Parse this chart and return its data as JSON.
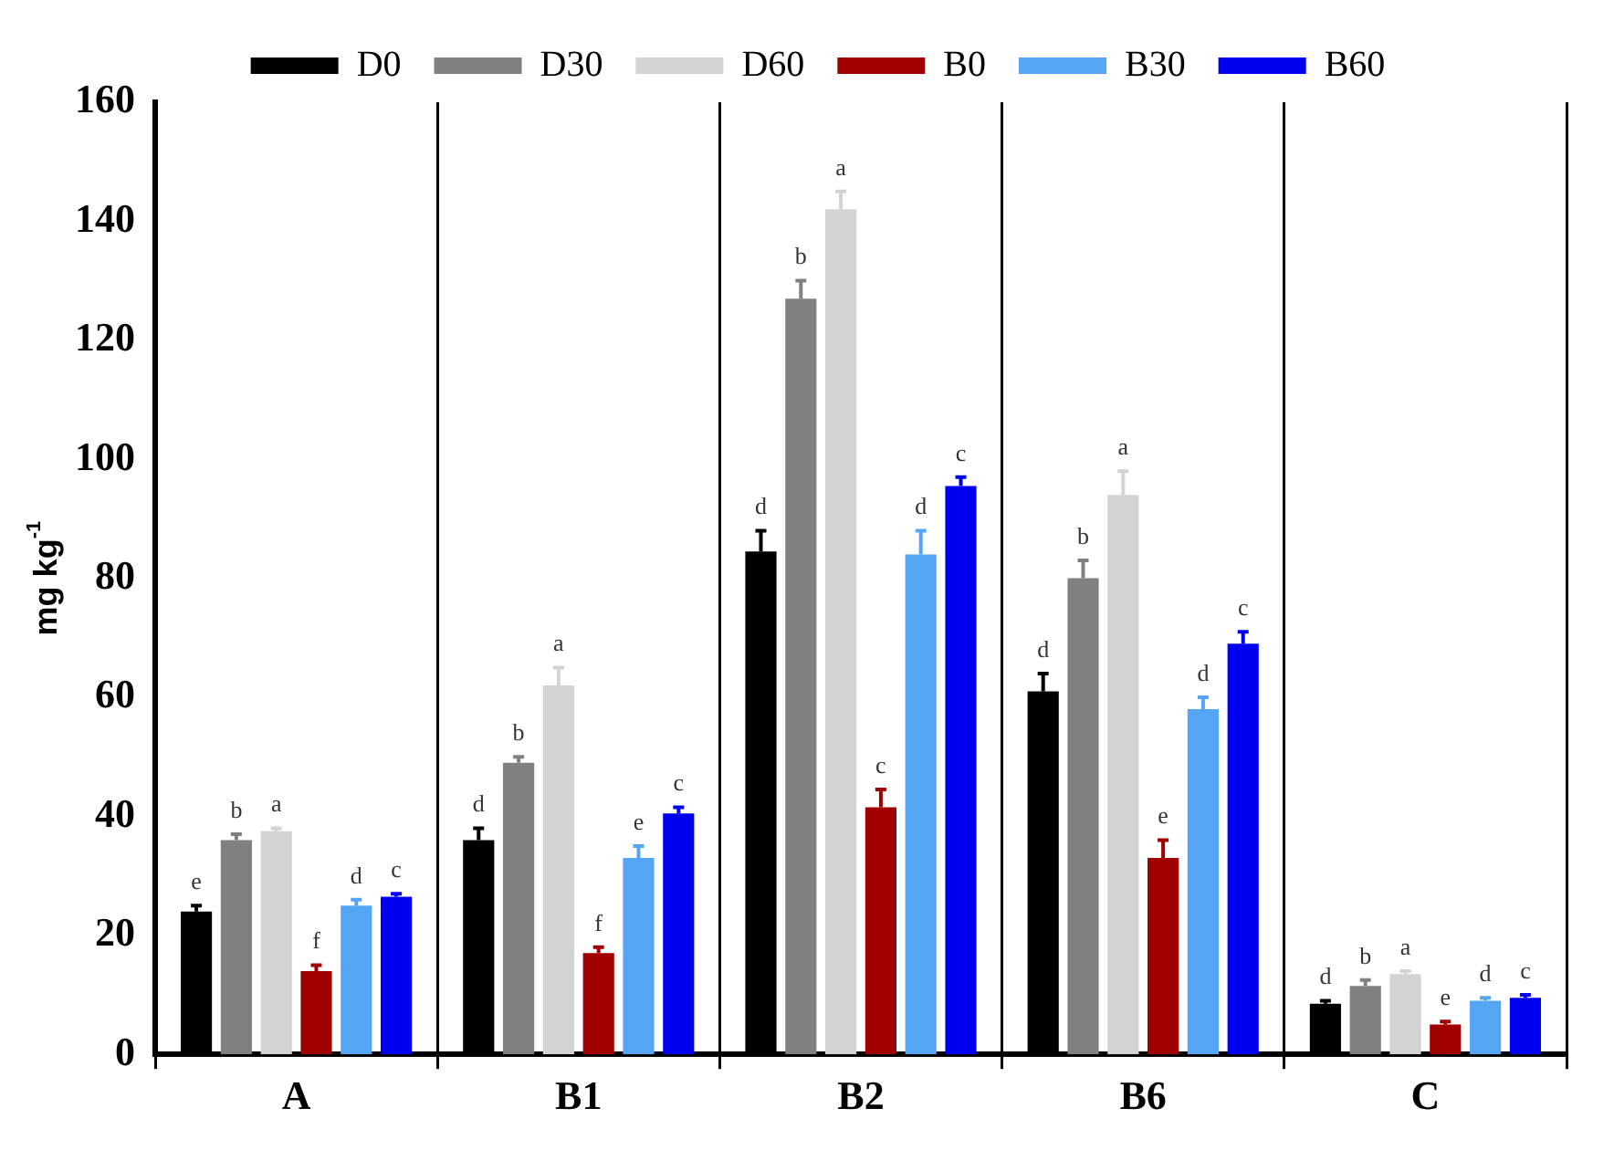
{
  "chart_data": {
    "type": "bar",
    "ylabel": "mg kg$^{-1}$",
    "categories": [
      "A",
      "B1",
      "B2",
      "B6",
      "C"
    ],
    "ylim": [
      0,
      160
    ],
    "yticks": [
      0,
      20,
      40,
      60,
      80,
      100,
      120,
      140,
      160
    ],
    "grid": "x",
    "legend": "top",
    "series": [
      {
        "name": "D0",
        "color": "#000000",
        "values": [
          24,
          36,
          84.5,
          61,
          8.5
        ],
        "errors": [
          [
            24,
            25
          ],
          [
            36,
            38
          ],
          [
            84.5,
            88
          ],
          [
            61,
            64
          ],
          [
            8.5,
            9
          ]
        ],
        "value_labels": [
          "e",
          "d",
          "d",
          "d",
          "d"
        ]
      },
      {
        "name": "D30",
        "color": "#808080",
        "values": [
          36,
          49,
          127,
          80,
          11.5
        ],
        "errors": [
          [
            36,
            37
          ],
          [
            49,
            50
          ],
          [
            127,
            130
          ],
          [
            80,
            83
          ],
          [
            11.5,
            12.5
          ]
        ],
        "value_labels": [
          "b",
          "b",
          "b",
          "b",
          "b"
        ]
      },
      {
        "name": "D60",
        "color": "#d3d3d3",
        "values": [
          37.5,
          62,
          142,
          94,
          13.5
        ],
        "errors": [
          [
            37.5,
            38
          ],
          [
            62,
            65
          ],
          [
            142,
            145
          ],
          [
            94,
            98
          ],
          [
            13.5,
            14
          ]
        ],
        "value_labels": [
          "a",
          "a",
          "a",
          "a",
          "a"
        ]
      },
      {
        "name": "B0",
        "color": "#a00000",
        "values": [
          14,
          17,
          41.5,
          33,
          5
        ],
        "errors": [
          [
            14,
            15
          ],
          [
            17,
            18
          ],
          [
            41.5,
            44.5
          ],
          [
            33,
            36
          ],
          [
            5,
            5.5
          ]
        ],
        "value_labels": [
          "f",
          "f",
          "c",
          "e",
          "e"
        ]
      },
      {
        "name": "B30",
        "color": "#55a5f5",
        "values": [
          25,
          33,
          84,
          58,
          9
        ],
        "errors": [
          [
            25,
            26
          ],
          [
            33,
            35
          ],
          [
            84,
            88
          ],
          [
            58,
            60
          ],
          [
            9,
            9.5
          ]
        ],
        "value_labels": [
          "d",
          "e",
          "d",
          "d",
          "d"
        ]
      },
      {
        "name": "B60",
        "color": "#0000f0",
        "values": [
          26.5,
          40.5,
          95.5,
          69,
          9.5
        ],
        "errors": [
          [
            26.5,
            27
          ],
          [
            40.5,
            41.5
          ],
          [
            95.5,
            97
          ],
          [
            69,
            71
          ],
          [
            9.5,
            10
          ]
        ],
        "value_labels": [
          "c",
          "c",
          "c",
          "c",
          "c"
        ]
      }
    ]
  }
}
